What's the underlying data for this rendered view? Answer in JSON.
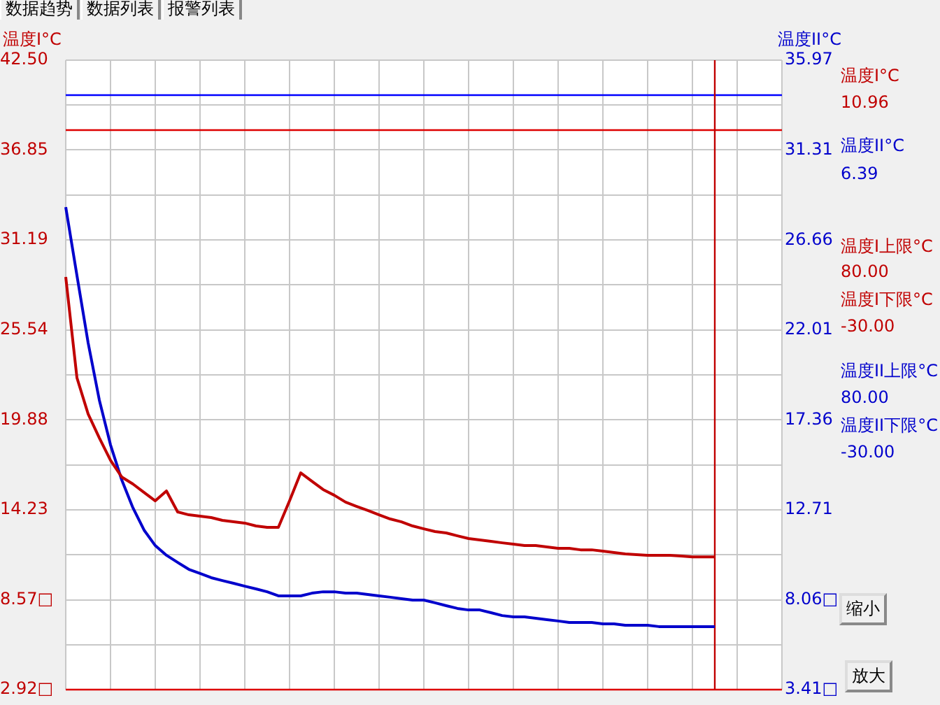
{
  "chart_data": {
    "type": "line",
    "ylabel": "温度I°C",
    "y2label": "温度II°C",
    "categories": [
      null,
      null,
      null,
      null,
      null,
      null,
      null,
      null,
      null,
      null,
      null,
      null,
      null,
      null,
      null,
      null,
      null,
      null,
      null,
      null,
      null,
      null,
      null,
      null,
      null,
      null,
      null,
      null,
      null,
      null,
      null,
      null,
      null,
      null,
      null,
      null,
      null,
      null,
      null,
      null,
      null,
      null,
      null,
      null,
      null,
      null,
      null,
      null,
      null,
      null,
      null,
      null,
      null,
      null,
      null,
      null,
      null,
      null,
      null,
      null,
      null,
      null,
      null,
      null,
      null
    ],
    "series": [
      {
        "name": "温度I°C",
        "color": "#c00000",
        "values": [
          28.87,
          22.53,
          20.25,
          18.75,
          17.34,
          16.29,
          15.85,
          15.32,
          14.79,
          15.41,
          14.09,
          13.91,
          13.83,
          13.74,
          13.56,
          13.47,
          13.39,
          13.21,
          13.12,
          13.12,
          14.79,
          16.55,
          16.02,
          15.5,
          15.14,
          14.71,
          14.44,
          14.18,
          13.91,
          13.65,
          13.47,
          13.21,
          13.03,
          12.86,
          12.77,
          12.59,
          12.42,
          12.33,
          12.24,
          12.15,
          12.07,
          11.98,
          11.98,
          11.89,
          11.8,
          11.8,
          11.71,
          11.71,
          11.63,
          11.54,
          11.45,
          11.41,
          11.36,
          11.36,
          11.36,
          11.32,
          11.27,
          11.27,
          11.27,
          null,
          null,
          null,
          null,
          null,
          null
        ]
      },
      {
        "name": "温度II°C",
        "color": "#0000cc",
        "axis": "y2",
        "values": [
          28.37,
          24.83,
          21.35,
          18.39,
          16.07,
          14.26,
          12.82,
          11.66,
          10.86,
          10.36,
          9.99,
          9.63,
          9.42,
          9.2,
          9.05,
          8.91,
          8.76,
          8.62,
          8.47,
          8.26,
          8.26,
          8.26,
          8.4,
          8.47,
          8.47,
          8.4,
          8.4,
          8.33,
          8.26,
          8.19,
          8.11,
          8.04,
          8.04,
          7.9,
          7.75,
          7.61,
          7.53,
          7.53,
          7.39,
          7.24,
          7.17,
          7.17,
          7.1,
          7.03,
          6.96,
          6.88,
          6.88,
          6.88,
          6.81,
          6.81,
          6.74,
          6.74,
          6.74,
          6.67,
          6.67,
          6.67,
          6.67,
          6.67,
          6.67,
          null,
          null,
          null,
          null,
          null,
          null
        ]
      }
    ],
    "ylim": [
      2.92,
      42.5
    ],
    "yticks": [
      {
        "value": 2.92,
        "label": "2.92□"
      },
      {
        "value": 5.745,
        "label": null
      },
      {
        "value": 8.57,
        "label": "8.57□"
      },
      {
        "value": 11.4,
        "label": null
      },
      {
        "value": 14.23,
        "label": "14.23"
      },
      {
        "value": 17.055,
        "label": null
      },
      {
        "value": 19.88,
        "label": "19.88"
      },
      {
        "value": 22.71,
        "label": null
      },
      {
        "value": 25.54,
        "label": "25.54"
      },
      {
        "value": 28.365,
        "label": null
      },
      {
        "value": 31.19,
        "label": "31.19"
      },
      {
        "value": 34.02,
        "label": null
      },
      {
        "value": 36.85,
        "label": "36.85"
      },
      {
        "value": 39.675,
        "label": null
      },
      {
        "value": 42.5,
        "label": "42.50"
      }
    ],
    "y2lim": [
      3.41,
      35.97
    ],
    "y2ticks": [
      {
        "value": 3.41,
        "label": "3.41□"
      },
      {
        "value": 8.06,
        "label": "8.06□"
      },
      {
        "value": 12.71,
        "label": "12.71"
      },
      {
        "value": 17.36,
        "label": "17.36"
      },
      {
        "value": 22.01,
        "label": "22.01"
      },
      {
        "value": 26.66,
        "label": "26.66"
      },
      {
        "value": 31.31,
        "label": "31.31"
      },
      {
        "value": 35.97,
        "label": "35.97"
      }
    ],
    "grid": true,
    "legend": false,
    "marker": "none",
    "line_style": "solid",
    "tick_labels": "y",
    "ref_lines": [
      {
        "axis": "y2",
        "value": 34.16,
        "color": "#0000ff"
      },
      {
        "axis": "y",
        "value": 38.1,
        "color": "#dd0000"
      },
      {
        "axis": "y",
        "value": 2.92,
        "color": "#dd0000"
      }
    ],
    "annotations": [
      "数据趋势",
      "数据列表",
      "报警列表",
      "10.96",
      "6.39",
      "温度I上限°C",
      "80.00",
      "温度I下限°C",
      "-30.00",
      "温度II上限°C",
      "80.00",
      "温度II下限°C",
      "-30.00",
      "缩小",
      "放大"
    ]
  }
}
